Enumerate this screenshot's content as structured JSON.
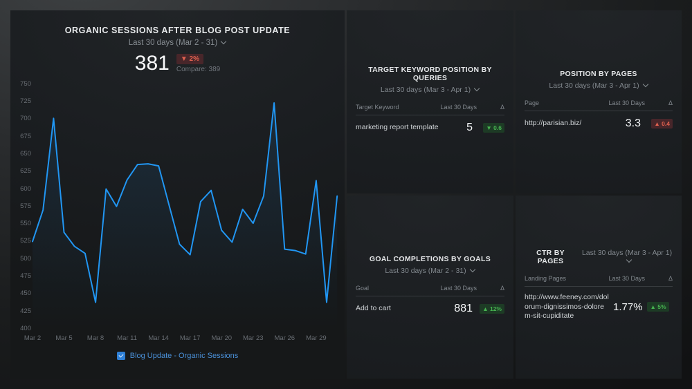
{
  "colors": {
    "accent_blue": "#2196f3",
    "legend_blue": "#4a90d8",
    "positive_green": "#47b351",
    "positive_green_bg": "#1d3b25",
    "negative_red": "#e0614f",
    "negative_red_bg": "#48262a",
    "panel_bg": "#1a1d20",
    "text_primary": "#e7e9eb",
    "text_muted": "#868c92"
  },
  "chart_data": {
    "type": "line",
    "title": "ORGANIC SESSIONS AFTER BLOG POST UPDATE",
    "xlabel": "",
    "ylabel": "",
    "ylim": [
      400,
      750
    ],
    "grid": false,
    "legend_position": "bottom",
    "x": [
      "Mar 2",
      "Mar 3",
      "Mar 4",
      "Mar 5",
      "Mar 6",
      "Mar 7",
      "Mar 8",
      "Mar 9",
      "Mar 10",
      "Mar 11",
      "Mar 12",
      "Mar 13",
      "Mar 14",
      "Mar 15",
      "Mar 16",
      "Mar 17",
      "Mar 18",
      "Mar 19",
      "Mar 20",
      "Mar 21",
      "Mar 22",
      "Mar 23",
      "Mar 24",
      "Mar 25",
      "Mar 26",
      "Mar 27",
      "Mar 28",
      "Mar 29",
      "Mar 30",
      "Mar 31"
    ],
    "series": [
      {
        "name": "Blog Update - Organic Sessions",
        "values": [
          525,
          570,
          701,
          538,
          518,
          508,
          438,
          600,
          575,
          613,
          635,
          636,
          633,
          577,
          521,
          506,
          582,
          598,
          541,
          524,
          571,
          551,
          590,
          723,
          514,
          512,
          507,
          612,
          438,
          590
        ]
      }
    ],
    "y_ticks": [
      750,
      725,
      700,
      675,
      650,
      625,
      600,
      575,
      550,
      525,
      500,
      475,
      450,
      425,
      400
    ],
    "x_tick_labels": [
      "Mar 2",
      "Mar 5",
      "Mar 8",
      "Mar 11",
      "Mar 14",
      "Mar 17",
      "Mar 20",
      "Mar 23",
      "Mar 26",
      "Mar 29"
    ]
  },
  "left_panel": {
    "title": "ORGANIC SESSIONS AFTER BLOG POST UPDATE",
    "date_range": "Last 30 days (Mar 2 - 31)",
    "value": "381",
    "delta": "▼ 2%",
    "compare": "Compare: 389",
    "legend_label": "Blog Update - Organic Sessions",
    "legend_checked": true
  },
  "panels": {
    "keyword": {
      "title": "TARGET KEYWORD POSITION BY QUERIES",
      "date_range": "Last 30 days (Mar 3 - Apr 1)",
      "columns": [
        "Target Keyword",
        "Last 30 Days",
        "Δ"
      ],
      "row": {
        "name": "marketing report template",
        "value": "5",
        "delta": "▼ 0.6"
      }
    },
    "pages": {
      "title": "POSITION BY PAGES",
      "date_range": "Last 30 days (Mar 3 - Apr 1)",
      "columns": [
        "Page",
        "Last 30 Days",
        "Δ"
      ],
      "row": {
        "name": "http://parisian.biz/",
        "value": "3.3",
        "delta": "▲ 0.4"
      }
    },
    "goals": {
      "title": "GOAL COMPLETIONS BY GOALS",
      "date_range": "Last 30 days (Mar 2 - 31)",
      "columns": [
        "Goal",
        "Last 30 Days",
        "Δ"
      ],
      "row": {
        "name": "Add to cart",
        "value": "881",
        "delta": "▲ 12%"
      }
    },
    "ctr": {
      "title": "CTR BY PAGES",
      "date_range": "Last 30 days (Mar 3 - Apr 1)",
      "columns": [
        "Landing Pages",
        "Last 30 Days",
        "Δ"
      ],
      "row": {
        "name": "http://www.feeney.com/dolorum-dignissimos-dolorem-sit-cupiditate",
        "value": "1.77%",
        "delta": "▲ 5%"
      }
    }
  }
}
